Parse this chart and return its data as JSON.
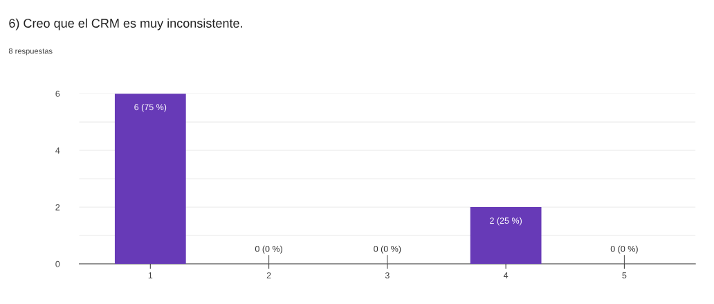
{
  "chart_data": {
    "type": "bar",
    "title": "6) Creo que el CRM es muy inconsistente.",
    "subtitle": "8 respuestas",
    "categories": [
      "1",
      "2",
      "3",
      "4",
      "5"
    ],
    "values": [
      6,
      0,
      0,
      2,
      0
    ],
    "value_labels": [
      "6 (75 %)",
      "0 (0 %)",
      "0 (0 %)",
      "2 (25 %)",
      "0 (0 %)"
    ],
    "color": "#673ab7",
    "ylim": [
      0,
      6
    ],
    "yticks": [
      0,
      {
        "value": 1,
        "label": null
      },
      2,
      {
        "value": 3,
        "label": null
      },
      4,
      {
        "value": 5,
        "label": null
      },
      6
    ],
    "grid": "y"
  }
}
